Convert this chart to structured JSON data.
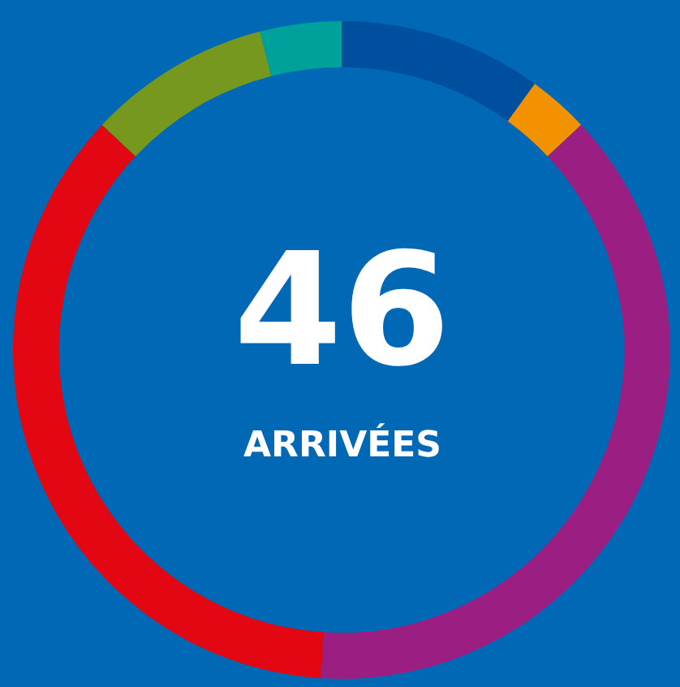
{
  "chart_data": {
    "type": "donut",
    "categories": [
      null,
      null,
      null,
      null,
      null,
      null
    ],
    "values": [
      10,
      3,
      38,
      36,
      9,
      4
    ],
    "colors": [
      "#004f9f",
      "#f39200",
      "#9b1f83",
      "#e30613",
      "#76981e",
      "#00a19a"
    ],
    "annotations": [
      "46",
      "ARRIVÉES"
    ],
    "legend": false
  }
}
